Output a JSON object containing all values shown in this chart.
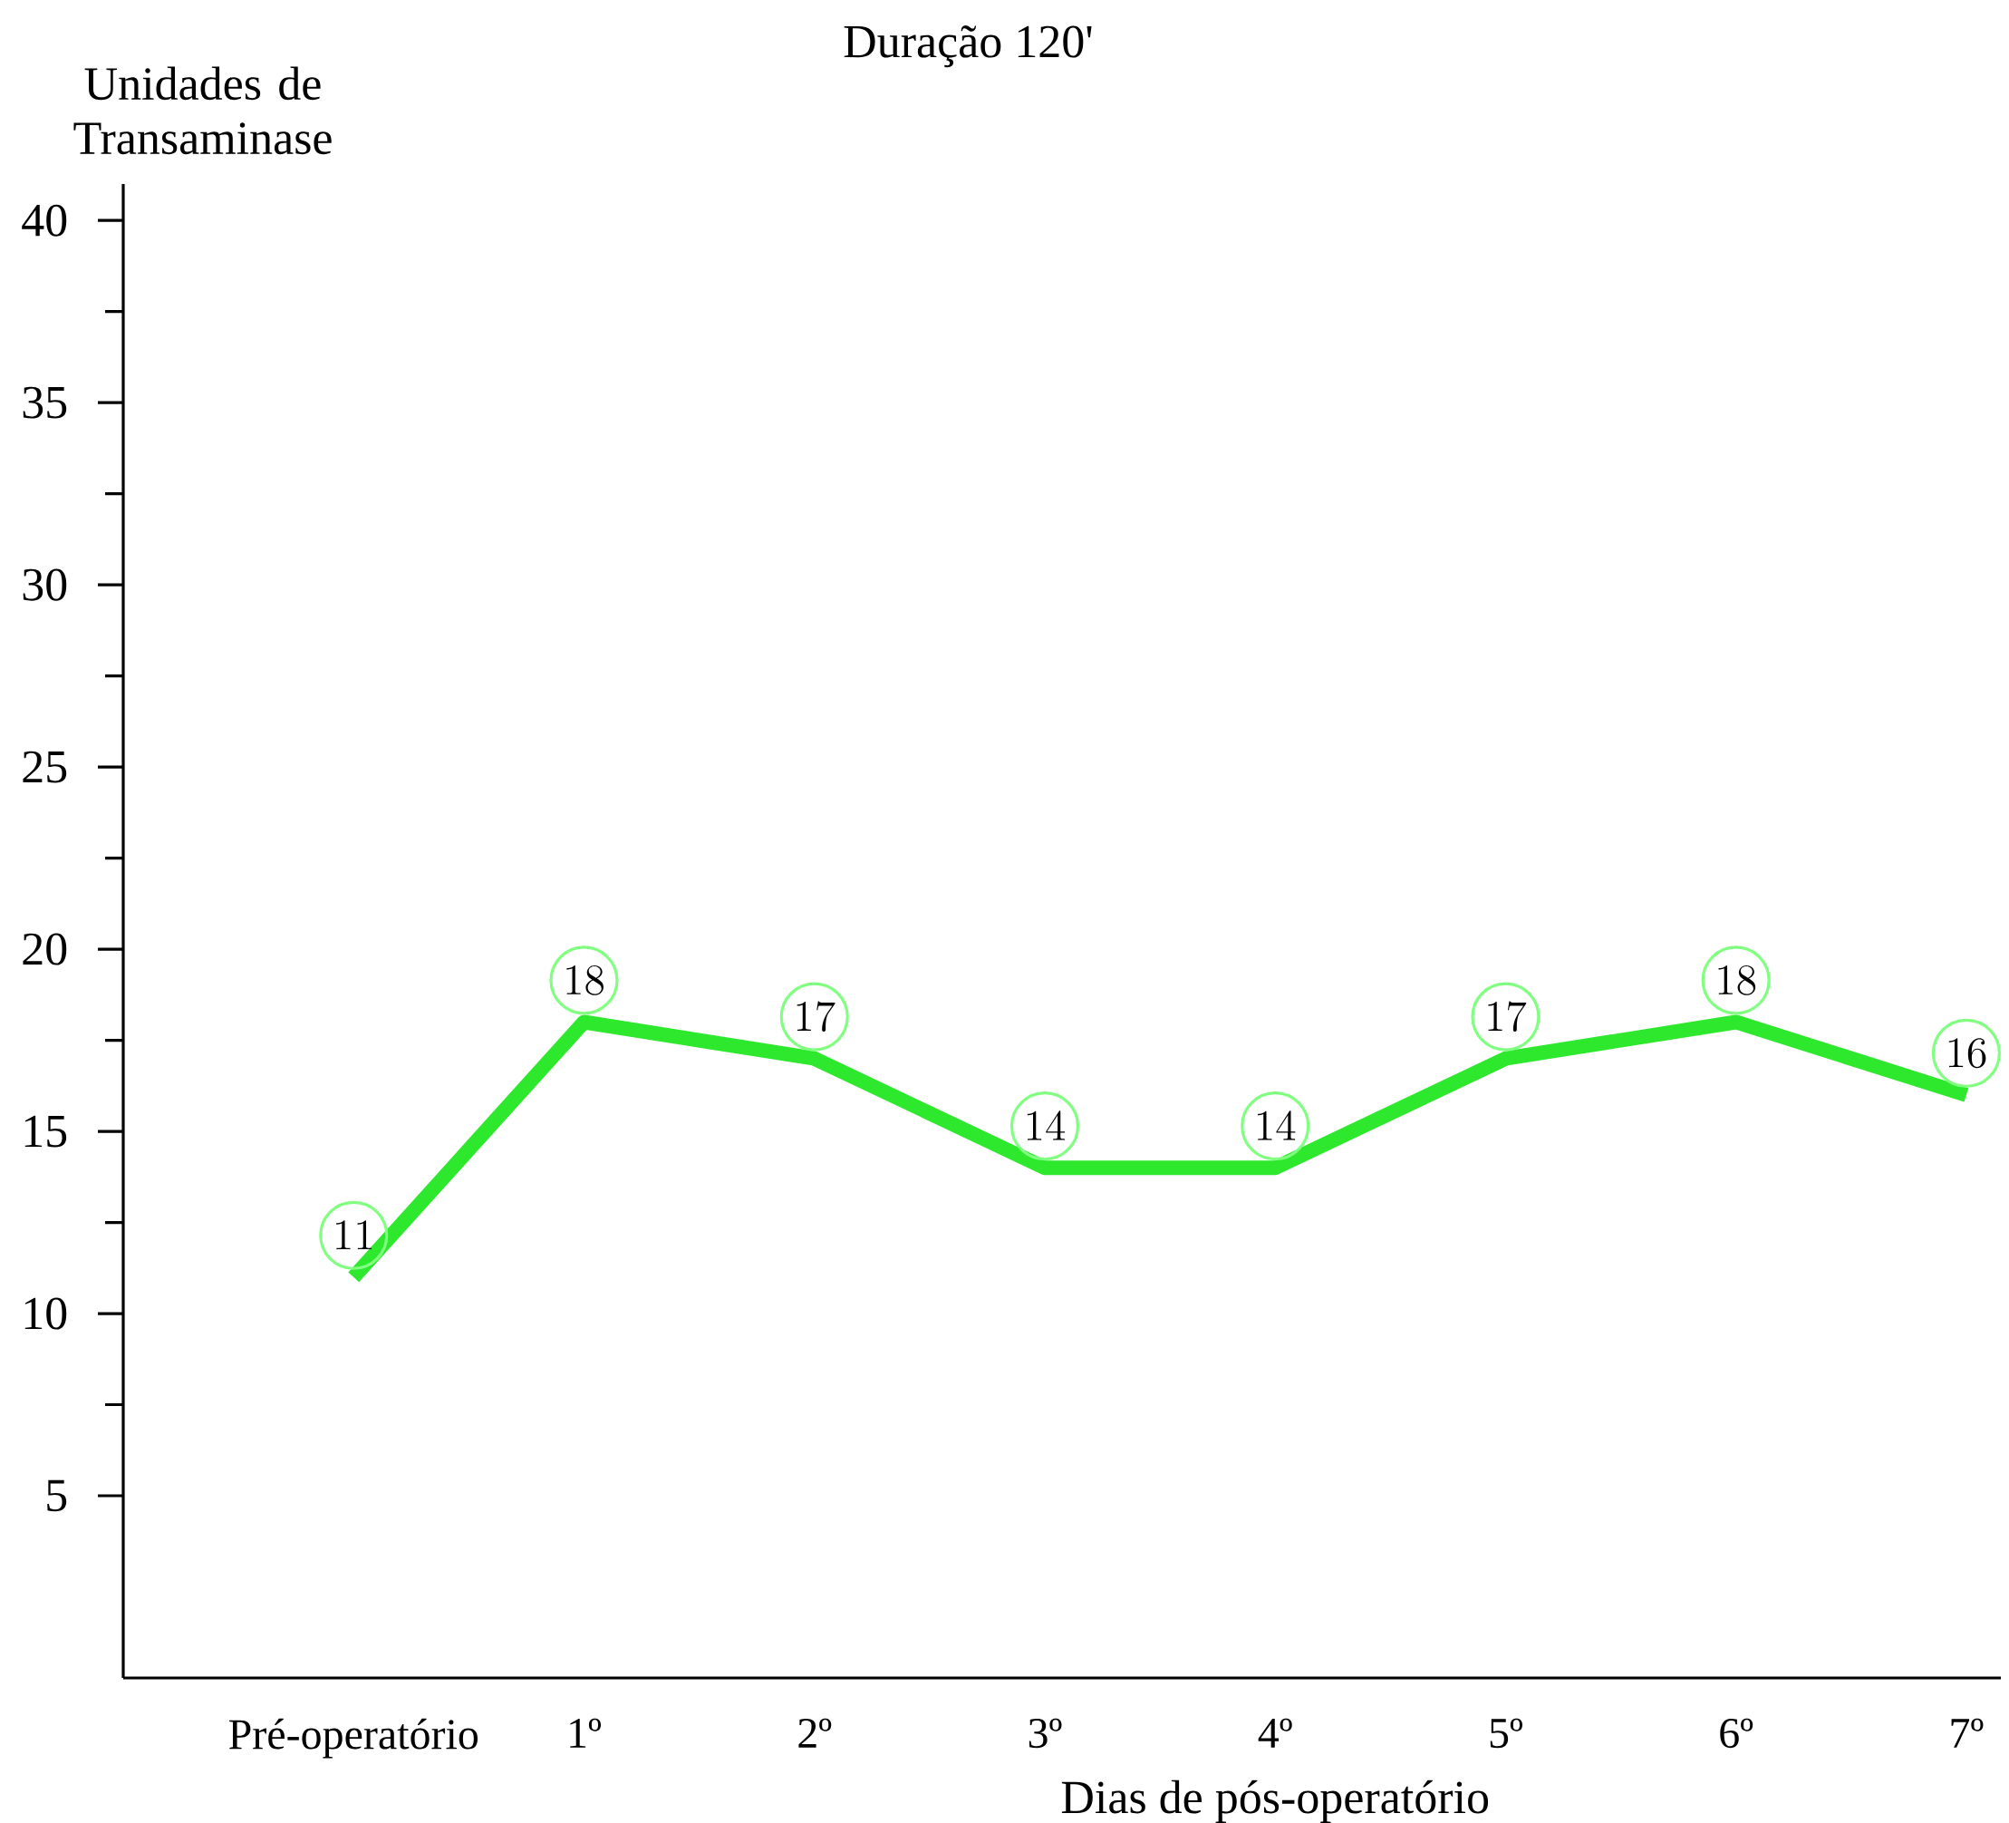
{
  "chart_data": {
    "type": "line",
    "title": "Duração 120'",
    "xlabel": "Dias de pós-operatório",
    "ylabel": "Unidades de Transaminase",
    "categories": [
      "Pré-operatório",
      "1º",
      "2º",
      "3º",
      "4º",
      "5º",
      "6º",
      "7º"
    ],
    "values": [
      11,
      18,
      17,
      14,
      14,
      17,
      18,
      16
    ],
    "color": "#2ee82e",
    "ylim": [
      0,
      41
    ],
    "yticks": [
      5,
      10,
      15,
      20,
      25,
      30,
      35,
      40
    ],
    "data_labels": true
  }
}
